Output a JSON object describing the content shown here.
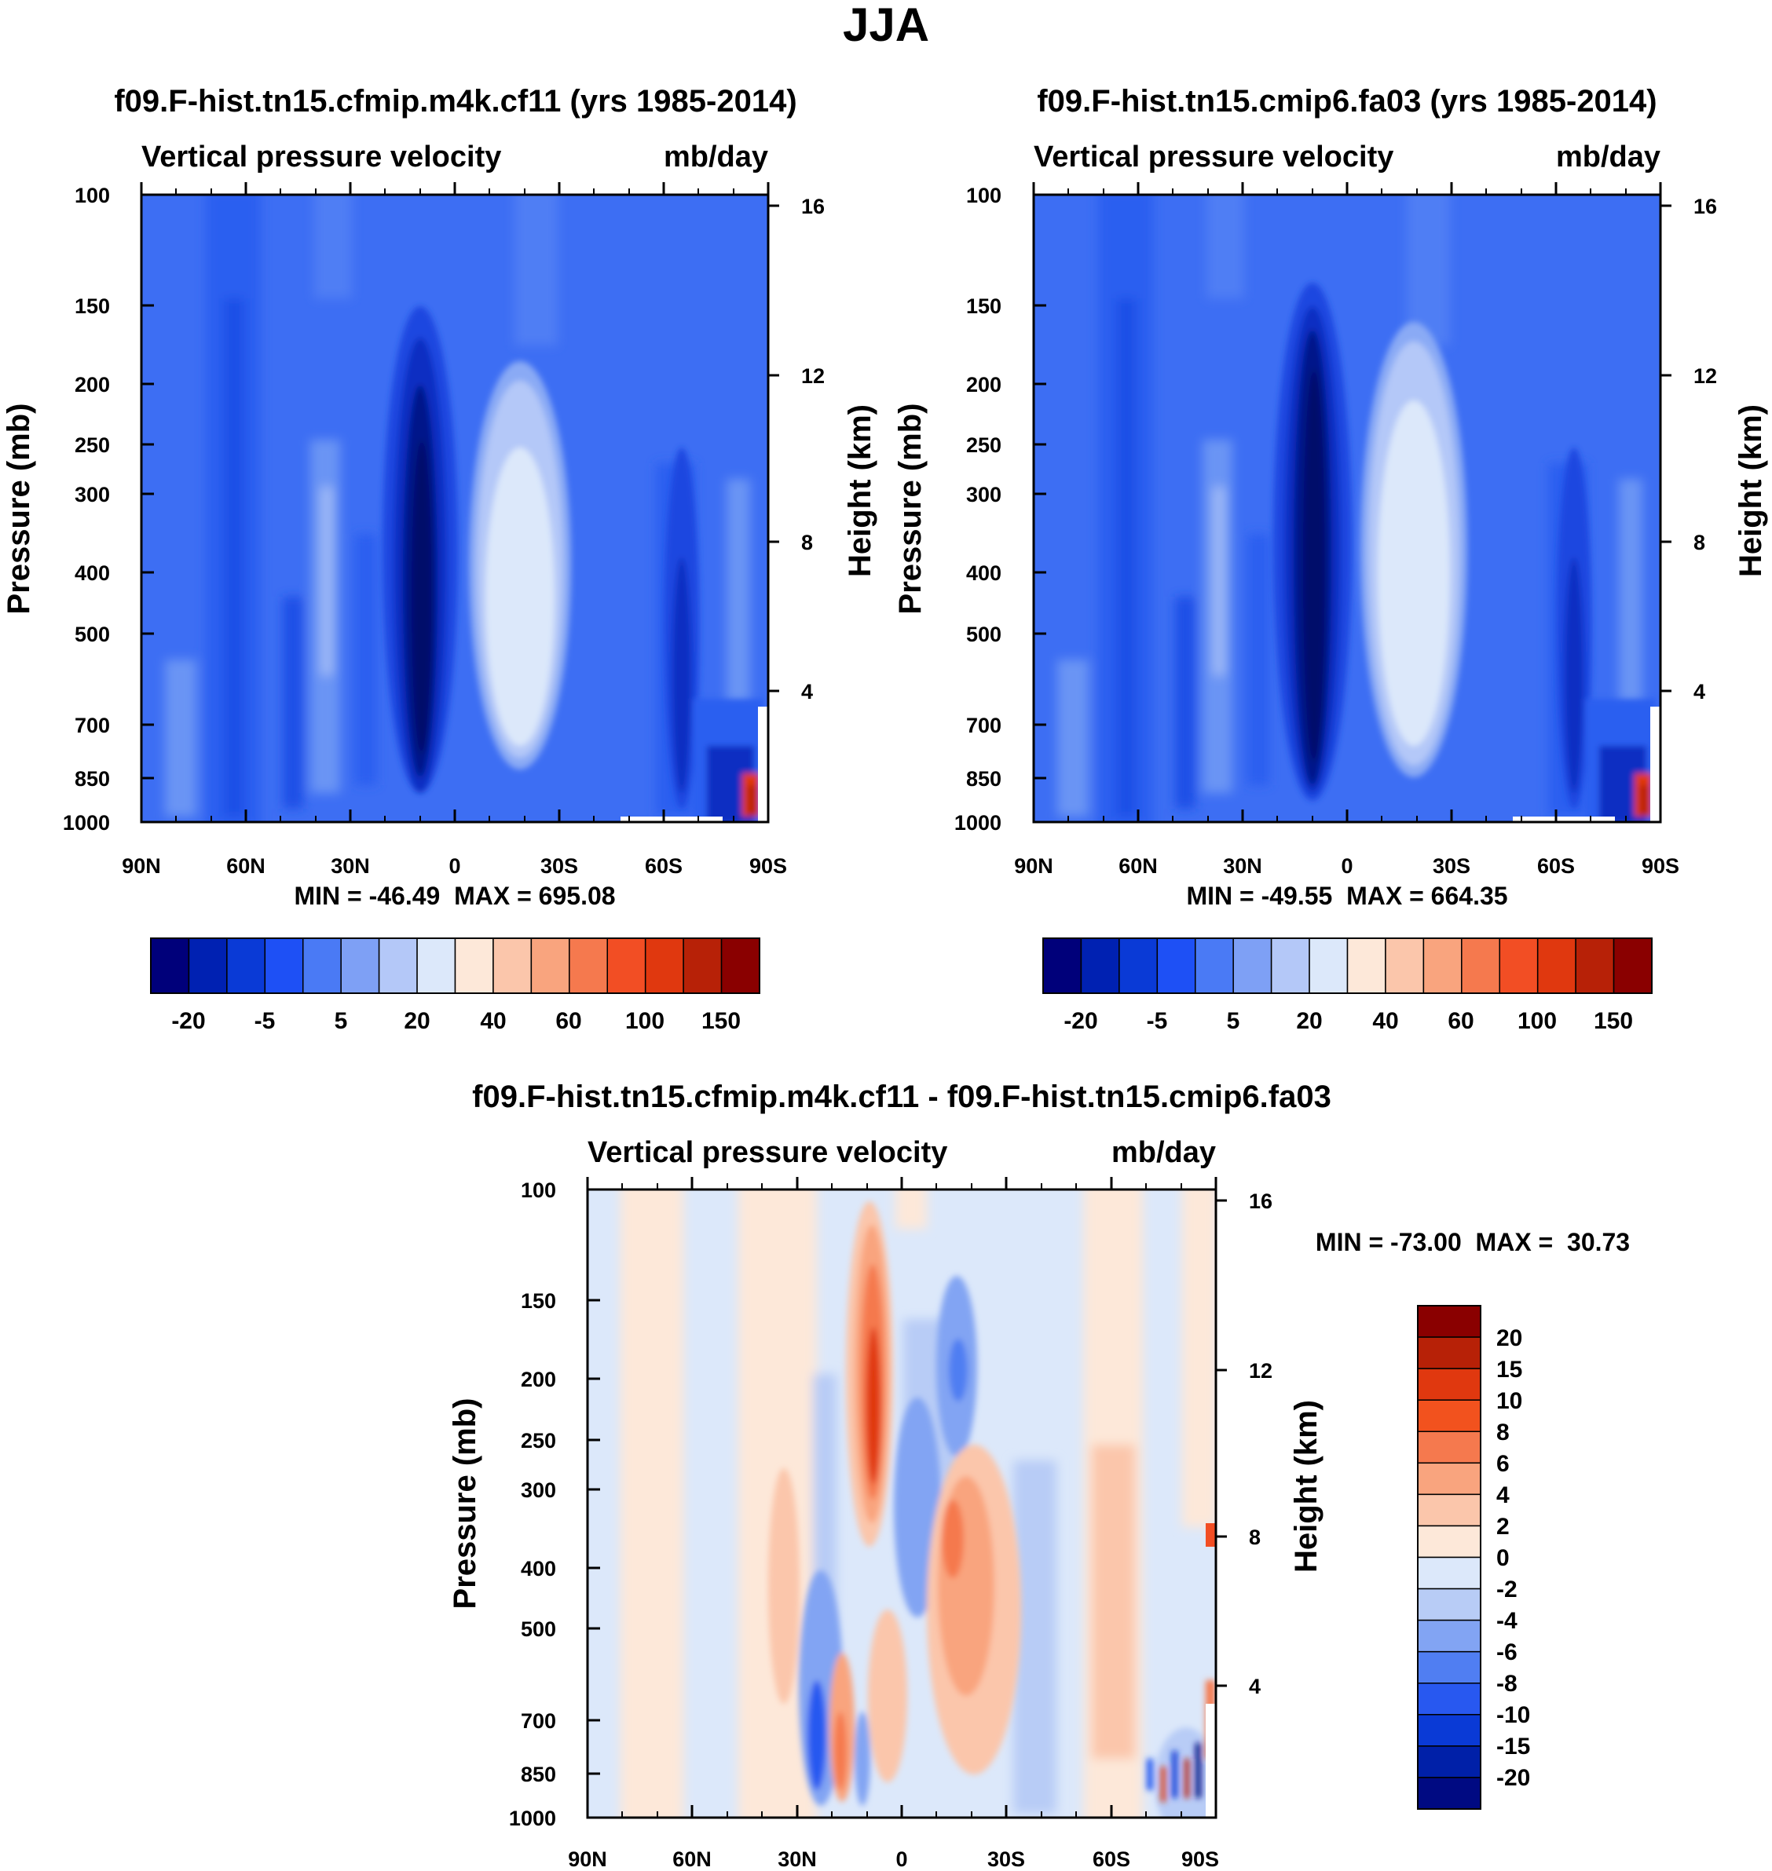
{
  "figure": {
    "season": "JJA"
  },
  "panels": [
    {
      "id": "left",
      "title": "f09.F-hist.tn15.cfmip.m4k.cf11 (yrs 1985-2014)",
      "left_subtitle": "Vertical pressure velocity",
      "right_subtitle": "mb/day",
      "minmax_text": "MIN = -46.49  MAX = 695.08",
      "y_label": "Pressure (mb)",
      "y2_label": "Height (km)"
    },
    {
      "id": "right",
      "title": "f09.F-hist.tn15.cmip6.fa03 (yrs 1985-2014)",
      "left_subtitle": "Vertical pressure velocity",
      "right_subtitle": "mb/day",
      "minmax_text": "MIN = -49.55  MAX = 664.35",
      "y_label": "Pressure (mb)",
      "y2_label": "Height (km)"
    },
    {
      "id": "diff",
      "title": "f09.F-hist.tn15.cfmip.m4k.cf11 - f09.F-hist.tn15.cmip6.fa03",
      "left_subtitle": "Vertical pressure velocity",
      "right_subtitle": "mb/day",
      "minmax_text": "MIN = -73.00  MAX =  30.73",
      "y_label": "Pressure (mb)",
      "y2_label": "Height (km)"
    }
  ],
  "chart_data": [
    {
      "type": "contour",
      "panel": "left",
      "title": "f09.F-hist.tn15.cfmip.m4k.cf11 (yrs 1985-2014)",
      "variable": "Vertical pressure velocity",
      "units": "mb/day",
      "x_ticks": [
        "90N",
        "60N",
        "30N",
        "0",
        "30S",
        "60S",
        "90S"
      ],
      "x_range": [
        90,
        -90
      ],
      "y_ticks": [
        100,
        150,
        200,
        250,
        300,
        400,
        500,
        700,
        850,
        1000
      ],
      "y_scale": "log",
      "y_range": [
        100,
        1000
      ],
      "height_ticks_km": [
        4,
        8,
        12,
        16
      ],
      "min": -46.49,
      "max": 695.08
    },
    {
      "type": "contour",
      "panel": "right",
      "title": "f09.F-hist.tn15.cmip6.fa03 (yrs 1985-2014)",
      "variable": "Vertical pressure velocity",
      "units": "mb/day",
      "x_ticks": [
        "90N",
        "60N",
        "30N",
        "0",
        "30S",
        "60S",
        "90S"
      ],
      "x_range": [
        90,
        -90
      ],
      "y_ticks": [
        100,
        150,
        200,
        250,
        300,
        400,
        500,
        700,
        850,
        1000
      ],
      "y_scale": "log",
      "y_range": [
        100,
        1000
      ],
      "height_ticks_km": [
        4,
        8,
        12,
        16
      ],
      "min": -49.55,
      "max": 664.35
    },
    {
      "type": "contour",
      "panel": "diff",
      "title": "f09.F-hist.tn15.cfmip.m4k.cf11 - f09.F-hist.tn15.cmip6.fa03",
      "variable": "Vertical pressure velocity",
      "units": "mb/day",
      "x_ticks": [
        "90N",
        "60N",
        "30N",
        "0",
        "30S",
        "60S",
        "90S"
      ],
      "x_range": [
        90,
        -90
      ],
      "y_ticks": [
        100,
        150,
        200,
        250,
        300,
        400,
        500,
        700,
        850,
        1000
      ],
      "y_scale": "log",
      "y_range": [
        100,
        1000
      ],
      "height_ticks_km": [
        4,
        8,
        12,
        16
      ],
      "min": -73.0,
      "max": 30.73
    }
  ],
  "colorbars": {
    "main": {
      "colors": [
        "#00007a",
        "#0021b2",
        "#0a3ad6",
        "#1e50f5",
        "#4a7af5",
        "#7ea0f5",
        "#b4c8f8",
        "#dce8fa",
        "#fde8d9",
        "#fbc6ab",
        "#f9a47e",
        "#f5794e",
        "#f24e24",
        "#e0380f",
        "#b72107",
        "#8a0000"
      ],
      "labels": [
        "-20",
        "-5",
        "5",
        "20",
        "40",
        "60",
        "100",
        "150"
      ]
    },
    "diff": {
      "colors": [
        "#000a82",
        "#0020a8",
        "#0a3ad6",
        "#2858f0",
        "#507ef2",
        "#82a4f3",
        "#b8ccf6",
        "#dce8fa",
        "#fde8d9",
        "#fbc6ab",
        "#f9a47e",
        "#f5794e",
        "#f2521e",
        "#e0380f",
        "#b72107",
        "#8a0000"
      ],
      "labels": [
        "20",
        "15",
        "10",
        "8",
        "6",
        "4",
        "2",
        "0",
        "-2",
        "-4",
        "-6",
        "-8",
        "-10",
        "-15",
        "-20"
      ]
    }
  }
}
